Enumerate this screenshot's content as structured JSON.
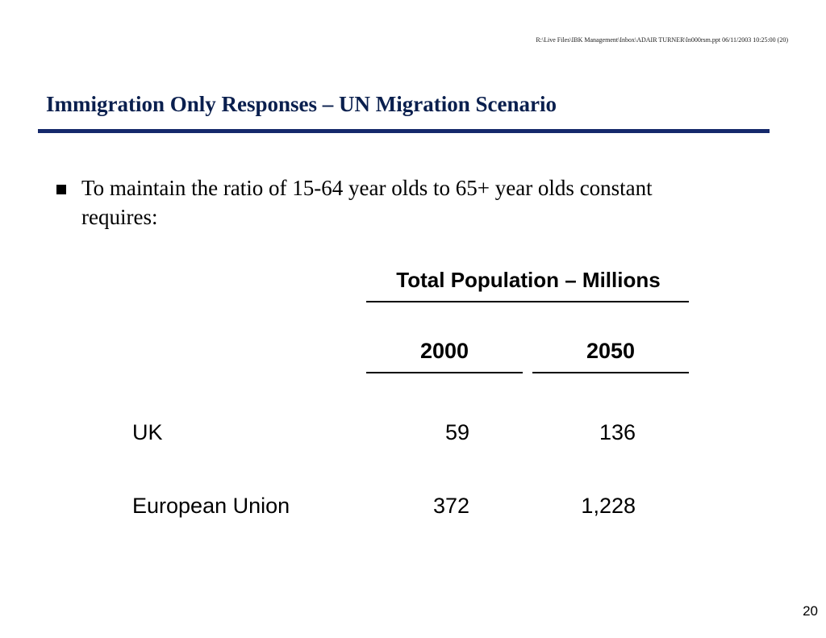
{
  "header": {
    "file_path": "R:\\Live Files\\IBK Management\\Inbox\\ADAIR TURNER\\ln000rsm.ppt 06/11/2003 10:25:00 (20)"
  },
  "slide": {
    "title": "Immigration Only Responses – UN Migration Scenario",
    "bullet": "To maintain the ratio of 15-64 year olds to 65+ year olds constant requires:"
  },
  "table": {
    "header": "Total Population – Millions",
    "columns": [
      "2000",
      "2050"
    ],
    "rows": [
      {
        "label": "UK",
        "values": [
          "59",
          "136"
        ]
      },
      {
        "label": "European Union",
        "values": [
          "372",
          "1,228"
        ]
      }
    ]
  },
  "colors": {
    "title": "#0a1f4e",
    "title_rule": "#15296b"
  },
  "footer": {
    "page_number": "20"
  }
}
